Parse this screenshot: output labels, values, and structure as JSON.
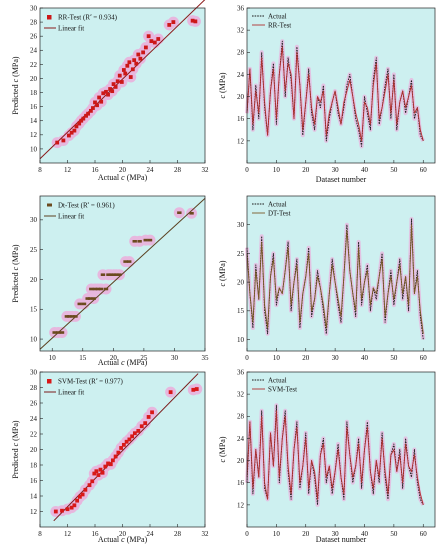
{
  "chart_data": [
    {
      "type": "scatter",
      "xlabel": "Actual c (MPa)",
      "ylabel": "Predicted c (MPa)",
      "xlim": [
        8,
        32
      ],
      "ylim": [
        8,
        30
      ],
      "xticks": [
        8,
        12,
        16,
        20,
        24,
        28,
        32
      ],
      "yticks": [
        10,
        12,
        14,
        16,
        18,
        20,
        22,
        24,
        26,
        28,
        30
      ],
      "legend": [
        "RR-Test (R² = 0.934)",
        "Linear fit"
      ],
      "legend_position": "top-left",
      "background": "#cdf0f0",
      "marker_color": "#cc1818",
      "halo_color": "#f0a4d8",
      "fit_color": "#8b1a1a",
      "fit": [
        [
          8,
          8.6
        ],
        [
          32,
          31.2
        ]
      ],
      "points": [
        [
          10.5,
          10.9
        ],
        [
          11.4,
          11.2
        ],
        [
          12.2,
          11.9
        ],
        [
          12.6,
          12.3
        ],
        [
          13.0,
          12.6
        ],
        [
          13.3,
          13.2
        ],
        [
          13.7,
          13.6
        ],
        [
          14.0,
          14.0
        ],
        [
          14.3,
          14.3
        ],
        [
          14.7,
          14.7
        ],
        [
          15.0,
          15.0
        ],
        [
          15.4,
          15.4
        ],
        [
          15.7,
          15.8
        ],
        [
          16.0,
          16.6
        ],
        [
          16.3,
          16.2
        ],
        [
          16.6,
          17.3
        ],
        [
          16.9,
          16.7
        ],
        [
          17.2,
          17.9
        ],
        [
          17.6,
          18.1
        ],
        [
          17.9,
          17.7
        ],
        [
          18.2,
          18.5
        ],
        [
          18.5,
          18.2
        ],
        [
          18.7,
          19.2
        ],
        [
          19.0,
          18.8
        ],
        [
          19.3,
          19.6
        ],
        [
          19.6,
          20.4
        ],
        [
          19.9,
          19.5
        ],
        [
          20.2,
          21.2
        ],
        [
          20.4,
          20.7
        ],
        [
          20.7,
          21.8
        ],
        [
          21.0,
          22.3
        ],
        [
          21.2,
          20.2
        ],
        [
          21.5,
          21.3
        ],
        [
          21.7,
          22.6
        ],
        [
          22.0,
          22.1
        ],
        [
          22.3,
          23.4
        ],
        [
          22.6,
          22.8
        ],
        [
          23.0,
          23.7
        ],
        [
          23.4,
          24.4
        ],
        [
          23.8,
          26.0
        ],
        [
          24.2,
          25.3
        ],
        [
          24.7,
          25.1
        ],
        [
          25.2,
          25.6
        ],
        [
          26.8,
          27.6
        ],
        [
          27.4,
          28.0
        ],
        [
          30.2,
          28.2
        ],
        [
          30.6,
          28.1
        ]
      ]
    },
    {
      "type": "line",
      "xlabel": "Dataset number",
      "ylabel": "c (MPa)",
      "xlim": [
        0,
        64
      ],
      "ylim": [
        8,
        36
      ],
      "xticks": [
        0,
        10,
        20,
        30,
        40,
        50,
        60
      ],
      "yticks": [
        12,
        16,
        20,
        24,
        28,
        32,
        36
      ],
      "legend_position": "top-left",
      "background": "#cdf0f0",
      "halo_color": "#f0a4d8",
      "series": [
        {
          "name": "Actual",
          "style": "dashed",
          "color": "#1a1a1a",
          "values": [
            17,
            25,
            14,
            22,
            16,
            28,
            18,
            13,
            21,
            26,
            15,
            24,
            30,
            20,
            27,
            23,
            16,
            29,
            22,
            13,
            19,
            25,
            17,
            14,
            20,
            18,
            22,
            12,
            16,
            19,
            21,
            17,
            15,
            18,
            22,
            24,
            20,
            16,
            14,
            11,
            20,
            17,
            14,
            23,
            27,
            15,
            18,
            22,
            25,
            16,
            24,
            14,
            19,
            21,
            17,
            20,
            23,
            16,
            18,
            13,
            12
          ]
        },
        {
          "name": "RR-Test",
          "style": "solid",
          "color": "#b03030",
          "values": [
            17,
            25,
            15,
            21,
            17,
            27,
            19,
            13,
            21,
            25,
            16,
            24,
            29,
            21,
            26,
            24,
            16,
            28,
            22,
            14,
            19,
            24,
            18,
            15,
            20,
            19,
            21,
            13,
            17,
            19,
            21,
            18,
            15,
            19,
            21,
            23,
            20,
            17,
            15,
            12,
            19,
            18,
            15,
            22,
            26,
            16,
            18,
            21,
            24,
            17,
            23,
            15,
            19,
            21,
            18,
            20,
            22,
            17,
            18,
            14,
            12
          ]
        }
      ]
    },
    {
      "type": "scatter",
      "xlabel": "Actual c (MPa)",
      "ylabel": "Predicted c (MPa)",
      "xlim": [
        8,
        35
      ],
      "ylim": [
        8,
        34
      ],
      "xticks": [
        10,
        15,
        20,
        25,
        30,
        35
      ],
      "yticks": [
        10,
        15,
        20,
        25,
        30
      ],
      "legend": [
        "Dt-Test (R² = 0.961)",
        "Linear fit"
      ],
      "legend_position": "top-left",
      "background": "#cdf0f0",
      "marker_color": "#6b4a1f",
      "halo_color": "#f0a4d8",
      "fit_color": "#5a4020",
      "fit": [
        [
          8,
          8.3
        ],
        [
          35,
          33.6
        ]
      ],
      "points": [
        [
          10.4,
          11.1
        ],
        [
          11.0,
          11.1
        ],
        [
          11.6,
          11.1
        ],
        [
          12.4,
          13.8
        ],
        [
          12.8,
          13.8
        ],
        [
          13.3,
          13.8
        ],
        [
          13.8,
          13.8
        ],
        [
          14.5,
          15.9
        ],
        [
          15.2,
          15.9
        ],
        [
          15.8,
          16.8
        ],
        [
          16.2,
          16.8
        ],
        [
          16.4,
          18.4
        ],
        [
          16.8,
          16.8
        ],
        [
          17.0,
          18.4
        ],
        [
          17.5,
          18.4
        ],
        [
          18.0,
          18.4
        ],
        [
          18.3,
          20.8
        ],
        [
          18.8,
          18.4
        ],
        [
          19.2,
          20.8
        ],
        [
          19.6,
          20.8
        ],
        [
          20.1,
          20.8
        ],
        [
          20.5,
          20.8
        ],
        [
          21.0,
          20.8
        ],
        [
          22.0,
          23.0
        ],
        [
          22.6,
          23.0
        ],
        [
          23.5,
          26.4
        ],
        [
          24.3,
          26.4
        ],
        [
          25.3,
          26.6
        ],
        [
          26.0,
          26.6
        ],
        [
          30.8,
          31.2
        ],
        [
          32.8,
          31.1
        ]
      ]
    },
    {
      "type": "line",
      "xlabel": "",
      "ylabel": "c (MPa)",
      "xlim": [
        0,
        64
      ],
      "ylim": [
        8,
        35
      ],
      "xticks": [
        0,
        10,
        20,
        30,
        40,
        50,
        60
      ],
      "yticks": [
        10,
        15,
        20,
        25,
        30
      ],
      "legend_position": "top-left",
      "background": "#cdf0f0",
      "halo_color": "#f0a4d8",
      "series": [
        {
          "name": "Actual",
          "style": "dashed",
          "color": "#1a1a1a",
          "values": [
            26,
            18,
            12,
            23,
            17,
            28,
            15,
            11,
            21,
            25,
            16,
            19,
            18,
            22,
            27,
            15,
            20,
            24,
            12,
            18,
            21,
            26,
            14,
            17,
            22,
            19,
            15,
            11,
            18,
            24,
            20,
            16,
            13,
            21,
            30,
            22,
            18,
            14,
            27,
            16,
            20,
            23,
            15,
            19,
            17,
            21,
            25,
            13,
            18,
            22,
            16,
            20,
            24,
            17,
            21,
            15,
            31,
            18,
            22,
            14,
            10
          ]
        },
        {
          "name": "DT-Test",
          "style": "solid",
          "color": "#7a5a26",
          "values": [
            25,
            18,
            13,
            22,
            17,
            27,
            16,
            12,
            21,
            24,
            17,
            19,
            18,
            22,
            26,
            16,
            20,
            23,
            13,
            18,
            21,
            25,
            15,
            17,
            21,
            19,
            16,
            12,
            18,
            23,
            20,
            17,
            14,
            21,
            29,
            22,
            18,
            15,
            26,
            17,
            20,
            22,
            16,
            19,
            18,
            21,
            24,
            14,
            18,
            21,
            17,
            20,
            23,
            18,
            21,
            16,
            30,
            18,
            21,
            15,
            11
          ]
        }
      ]
    },
    {
      "type": "scatter",
      "xlabel": "Actual c (MPa)",
      "ylabel": "Predicted c (MPa)",
      "xlim": [
        8,
        32
      ],
      "ylim": [
        10,
        30
      ],
      "xticks": [
        8,
        12,
        16,
        20,
        24,
        28,
        32
      ],
      "yticks": [
        12,
        14,
        16,
        18,
        20,
        22,
        24,
        26,
        28,
        30
      ],
      "legend": [
        "SVM-Test (R² = 0.977)",
        "Linear fit"
      ],
      "legend_position": "top-left",
      "background": "#cdf0f0",
      "marker_color": "#d81818",
      "halo_color": "#f0a4d8",
      "fit_color": "#7a1a1a",
      "fit": [
        [
          10,
          10.8
        ],
        [
          31,
          29.8
        ]
      ],
      "points": [
        [
          10.3,
          12.0
        ],
        [
          11.2,
          12.1
        ],
        [
          12.0,
          12.3
        ],
        [
          12.6,
          12.5
        ],
        [
          13.0,
          12.8
        ],
        [
          13.4,
          13.4
        ],
        [
          13.8,
          13.9
        ],
        [
          14.2,
          14.2
        ],
        [
          14.6,
          14.8
        ],
        [
          15.2,
          15.4
        ],
        [
          15.6,
          15.9
        ],
        [
          15.9,
          16.9
        ],
        [
          16.2,
          17.2
        ],
        [
          16.5,
          16.7
        ],
        [
          16.8,
          17.4
        ],
        [
          17.1,
          17.0
        ],
        [
          17.5,
          17.8
        ],
        [
          17.9,
          18.2
        ],
        [
          18.3,
          18.1
        ],
        [
          18.6,
          18.6
        ],
        [
          19.0,
          19.1
        ],
        [
          19.4,
          19.6
        ],
        [
          19.8,
          20.2
        ],
        [
          20.2,
          20.6
        ],
        [
          20.6,
          21.0
        ],
        [
          21.0,
          21.3
        ],
        [
          21.4,
          21.7
        ],
        [
          21.8,
          22.1
        ],
        [
          22.3,
          22.4
        ],
        [
          22.8,
          23.0
        ],
        [
          23.3,
          23.4
        ],
        [
          23.8,
          24.2
        ],
        [
          24.3,
          24.8
        ],
        [
          27.0,
          27.4
        ],
        [
          30.3,
          27.7
        ],
        [
          30.8,
          27.8
        ]
      ]
    },
    {
      "type": "line",
      "xlabel": "Dataset number",
      "ylabel": "c (MPa)",
      "xlim": [
        0,
        64
      ],
      "ylim": [
        8,
        36
      ],
      "xticks": [
        0,
        10,
        20,
        30,
        40,
        50,
        60
      ],
      "yticks": [
        12,
        16,
        20,
        24,
        28,
        32,
        36
      ],
      "legend_position": "top-left",
      "background": "#cdf0f0",
      "halo_color": "#f0a4d8",
      "series": [
        {
          "name": "Actual",
          "style": "dashed",
          "color": "#1a1a1a",
          "values": [
            16,
            27,
            14,
            22,
            17,
            29,
            15,
            13,
            25,
            19,
            30,
            16,
            24,
            29,
            18,
            13,
            22,
            27,
            15,
            19,
            25,
            14,
            20,
            17,
            12,
            21,
            24,
            16,
            19,
            14,
            18,
            23,
            17,
            13,
            27,
            21,
            16,
            19,
            24,
            15,
            22,
            27,
            18,
            14,
            20,
            16,
            25,
            17,
            13,
            21,
            23,
            18,
            22,
            15,
            24,
            19,
            17,
            22,
            16,
            13,
            12
          ]
        },
        {
          "name": "SVM-Test",
          "style": "solid",
          "color": "#b03030",
          "values": [
            17,
            27,
            15,
            22,
            17,
            28,
            16,
            13,
            25,
            19,
            29,
            17,
            24,
            28,
            19,
            14,
            22,
            26,
            16,
            19,
            24,
            15,
            20,
            18,
            13,
            21,
            23,
            17,
            19,
            15,
            18,
            22,
            17,
            14,
            26,
            21,
            17,
            19,
            23,
            16,
            22,
            26,
            18,
            15,
            20,
            17,
            24,
            18,
            14,
            21,
            22,
            18,
            21,
            16,
            23,
            19,
            18,
            21,
            17,
            14,
            12
          ]
        }
      ]
    }
  ]
}
